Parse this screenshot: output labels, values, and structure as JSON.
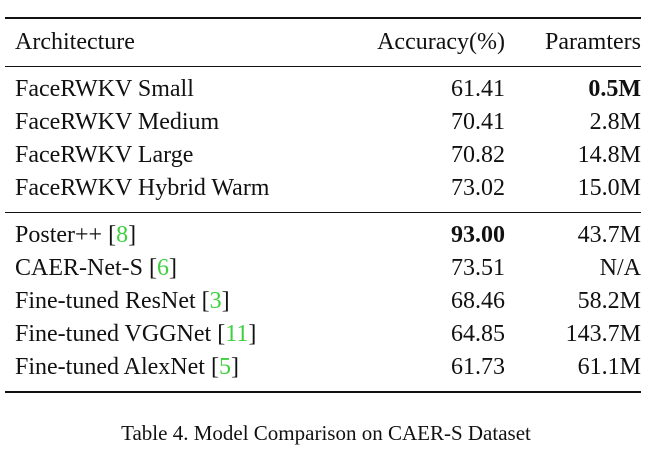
{
  "table": {
    "headers": {
      "architecture": "Architecture",
      "accuracy": "Accuracy(%)",
      "parameters": "Paramters"
    },
    "group1": [
      {
        "name": "FaceRWKV Small",
        "accuracy": "61.41",
        "params": "0.5M",
        "params_bold": true
      },
      {
        "name": "FaceRWKV Medium",
        "accuracy": "70.41",
        "params": "2.8M"
      },
      {
        "name": "FaceRWKV Large",
        "accuracy": "70.82",
        "params": "14.8M"
      },
      {
        "name": "FaceRWKV Hybrid Warm",
        "accuracy": "73.02",
        "params": "15.0M"
      }
    ],
    "group2": [
      {
        "name": "Poster++",
        "ref": "8",
        "accuracy": "93.00",
        "accuracy_bold": true,
        "params": "43.7M"
      },
      {
        "name": "CAER-Net-S",
        "ref": "6",
        "accuracy": "73.51",
        "params": "N/A"
      },
      {
        "name": "Fine-tuned ResNet",
        "ref": "3",
        "accuracy": "68.46",
        "params": "58.2M"
      },
      {
        "name": "Fine-tuned VGGNet",
        "ref": "11",
        "accuracy": "64.85",
        "params": "143.7M"
      },
      {
        "name": "Fine-tuned AlexNet",
        "ref": "5",
        "accuracy": "61.73",
        "params": "61.1M"
      }
    ]
  },
  "caption": "Table 4. Model Comparison on CAER-S Dataset"
}
